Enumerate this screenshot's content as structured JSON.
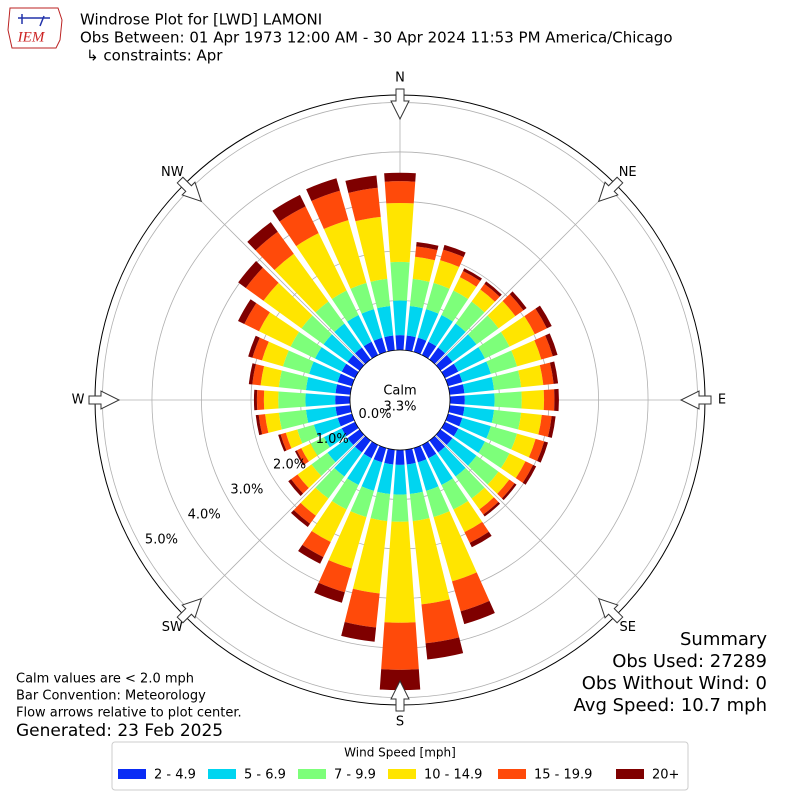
{
  "header": {
    "title": "Windrose Plot for [LWD] LAMONI",
    "subtitle": "Obs Between: 01 Apr 1973 12:00 AM - 30 Apr 2024 11:53 PM America/Chicago",
    "constraints": "↳ constraints: Apr",
    "logo_text": "IEM"
  },
  "notes": [
    "Calm values are < 2.0 mph",
    "Bar Convention: Meteorology",
    "Flow arrows relative to plot center.",
    "Generated: 23 Feb 2025"
  ],
  "summary": [
    "Summary",
    "Obs Used: 27289",
    "Obs Without Wind: 0",
    "Avg Speed: 10.7 mph"
  ],
  "chart_data": {
    "type": "windrose",
    "calm_title": "Calm",
    "calm_text": "3.3%",
    "x": [
      0,
      10,
      20,
      30,
      40,
      50,
      60,
      70,
      80,
      90,
      100,
      110,
      120,
      130,
      140,
      150,
      160,
      170,
      180,
      190,
      200,
      210,
      220,
      230,
      240,
      250,
      260,
      270,
      280,
      290,
      300,
      310,
      320,
      330,
      340,
      350
    ],
    "xlim": [
      0,
      360
    ],
    "xticks": [
      {
        "value": 0,
        "label": "N"
      },
      {
        "value": 45,
        "label": "NE"
      },
      {
        "value": 90,
        "label": "E"
      },
      {
        "value": 135,
        "label": "SE"
      },
      {
        "value": 180,
        "label": "S"
      },
      {
        "value": 225,
        "label": "SW"
      },
      {
        "value": 270,
        "label": "W"
      },
      {
        "value": 315,
        "label": "NW"
      }
    ],
    "ylim": [
      0,
      5.15
    ],
    "yticks": [
      {
        "value": 0,
        "label": "0.0%"
      },
      {
        "value": 1,
        "label": "1.0%"
      },
      {
        "value": 2,
        "label": "2.0%"
      },
      {
        "value": 3,
        "label": "3.0%"
      },
      {
        "value": 4,
        "label": "4.0%"
      },
      {
        "value": 5,
        "label": "5.0%"
      }
    ],
    "grid": true,
    "legend_title": "Wind Speed [mph]",
    "series": [
      {
        "name": "2 - 4.9",
        "color": "#0a2cf5",
        "values": [
          0.3,
          0.3,
          0.3,
          0.3,
          0.3,
          0.3,
          0.3,
          0.3,
          0.3,
          0.3,
          0.3,
          0.3,
          0.3,
          0.3,
          0.3,
          0.3,
          0.3,
          0.3,
          0.3,
          0.3,
          0.3,
          0.3,
          0.3,
          0.3,
          0.3,
          0.3,
          0.3,
          0.3,
          0.3,
          0.3,
          0.3,
          0.3,
          0.3,
          0.3,
          0.3,
          0.3
        ]
      },
      {
        "name": "5 - 6.9",
        "color": "#00d5f0",
        "values": [
          0.7,
          0.6,
          0.6,
          0.6,
          0.6,
          0.6,
          0.6,
          0.6,
          0.6,
          0.6,
          0.6,
          0.6,
          0.6,
          0.6,
          0.6,
          0.6,
          0.6,
          0.6,
          0.6,
          0.6,
          0.6,
          0.6,
          0.6,
          0.5,
          0.4,
          0.5,
          0.6,
          0.6,
          0.6,
          0.6,
          0.6,
          0.6,
          0.6,
          0.6,
          0.6,
          0.6
        ]
      },
      {
        "name": "7 - 9.9",
        "color": "#7dff7a",
        "values": [
          0.78,
          0.55,
          0.55,
          0.55,
          0.55,
          0.55,
          0.55,
          0.55,
          0.55,
          0.55,
          0.55,
          0.55,
          0.55,
          0.55,
          0.55,
          0.55,
          0.55,
          0.55,
          0.55,
          0.55,
          0.55,
          0.55,
          0.55,
          0.4,
          0.3,
          0.35,
          0.55,
          0.55,
          0.55,
          0.55,
          0.55,
          0.55,
          0.55,
          0.55,
          0.55,
          0.55
        ]
      },
      {
        "name": "10 - 14.9",
        "color": "#ffe500",
        "values": [
          1.19,
          0.45,
          0.48,
          0.3,
          0.3,
          0.42,
          0.57,
          0.51,
          0.45,
          0.45,
          0.42,
          0.39,
          0.36,
          0.27,
          0.27,
          0.51,
          1.35,
          1.69,
          2.04,
          1.47,
          1.08,
          0.73,
          0.43,
          0.35,
          0.21,
          0.24,
          0.28,
          0.29,
          0.37,
          0.44,
          0.71,
          0.95,
          1.19,
          1.29,
          1.32,
          1.26
        ]
      },
      {
        "name": "15 - 19.9",
        "color": "#ff4a0a",
        "values": [
          0.44,
          0.21,
          0.22,
          0.14,
          0.14,
          0.2,
          0.27,
          0.24,
          0.21,
          0.21,
          0.2,
          0.18,
          0.17,
          0.13,
          0.13,
          0.24,
          0.63,
          0.79,
          0.95,
          0.69,
          0.5,
          0.34,
          0.2,
          0.16,
          0.1,
          0.11,
          0.13,
          0.14,
          0.17,
          0.2,
          0.33,
          0.44,
          0.55,
          0.6,
          0.62,
          0.59
        ]
      },
      {
        "name": "20+",
        "color": "#7f0000",
        "values": [
          0.17,
          0.09,
          0.1,
          0.06,
          0.06,
          0.08,
          0.11,
          0.1,
          0.09,
          0.09,
          0.08,
          0.08,
          0.07,
          0.05,
          0.05,
          0.1,
          0.27,
          0.33,
          0.41,
          0.29,
          0.22,
          0.15,
          0.08,
          0.07,
          0.04,
          0.05,
          0.06,
          0.06,
          0.07,
          0.09,
          0.14,
          0.19,
          0.24,
          0.26,
          0.26,
          0.25
        ]
      }
    ]
  }
}
